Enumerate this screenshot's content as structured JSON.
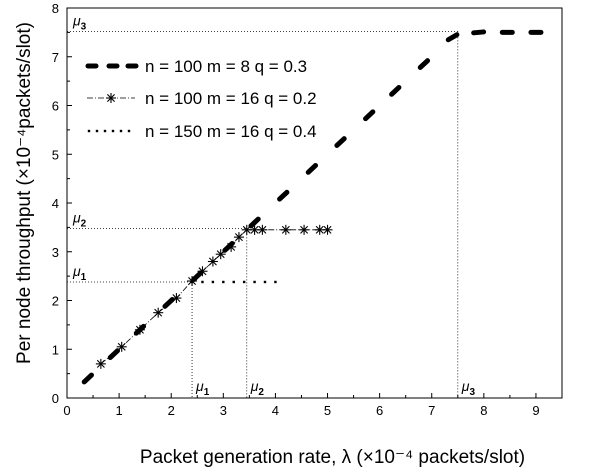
{
  "chart_data": {
    "type": "line",
    "xlabel": "Packet generation rate, λ (×10⁻⁴ packets/slot)",
    "ylabel": "Per node throughput (×10⁻⁴packets/slot)",
    "xlim": [
      0,
      9.5
    ],
    "ylim": [
      0,
      8
    ],
    "xticks": [
      "0",
      "1",
      "2",
      "3",
      "4",
      "5",
      "6",
      "7",
      "8",
      "9"
    ],
    "yticks": [
      "0",
      "1",
      "2",
      "3",
      "4",
      "5",
      "6",
      "7",
      "8"
    ],
    "grid": false,
    "legend_position": "top-left",
    "series": [
      {
        "name": "n = 100  m = 8  q = 0.3",
        "style": "dash",
        "points": [
          [
            0.4,
            0.4
          ],
          [
            0.9,
            0.9
          ],
          [
            1.4,
            1.4
          ],
          [
            1.95,
            1.95
          ],
          [
            2.5,
            2.5
          ],
          [
            3.1,
            3.1
          ],
          [
            3.6,
            3.6
          ],
          [
            4.15,
            4.15
          ],
          [
            4.7,
            4.7
          ],
          [
            5.25,
            5.25
          ],
          [
            5.8,
            5.8
          ],
          [
            6.3,
            6.3
          ],
          [
            6.85,
            6.85
          ],
          [
            7.4,
            7.4
          ],
          [
            7.9,
            7.5
          ],
          [
            8.45,
            7.5
          ],
          [
            9.0,
            7.5
          ]
        ]
      },
      {
        "name": "n = 100  m = 16  q = 0.2",
        "style": "star",
        "points": [
          [
            0.65,
            0.7
          ],
          [
            1.05,
            1.05
          ],
          [
            1.4,
            1.4
          ],
          [
            1.75,
            1.75
          ],
          [
            2.1,
            2.05
          ],
          [
            2.4,
            2.4
          ],
          [
            2.6,
            2.6
          ],
          [
            2.8,
            2.8
          ],
          [
            2.95,
            2.95
          ],
          [
            3.15,
            3.1
          ],
          [
            3.3,
            3.3
          ],
          [
            3.45,
            3.45
          ],
          [
            3.6,
            3.45
          ],
          [
            3.75,
            3.45
          ],
          [
            4.2,
            3.45
          ],
          [
            4.55,
            3.45
          ],
          [
            4.85,
            3.45
          ],
          [
            5.0,
            3.45
          ]
        ]
      },
      {
        "name": "n = 150  m = 16  q = 0.4",
        "style": "dot",
        "points": [
          [
            2.4,
            2.38
          ],
          [
            2.6,
            2.38
          ],
          [
            2.8,
            2.38
          ],
          [
            3.0,
            2.38
          ],
          [
            3.2,
            2.38
          ],
          [
            3.4,
            2.38
          ],
          [
            3.6,
            2.38
          ],
          [
            3.8,
            2.38
          ],
          [
            4.0,
            2.38
          ]
        ]
      }
    ],
    "reference_lines": [
      {
        "label": "μ",
        "sub": "1",
        "x": 2.4,
        "y": 2.38
      },
      {
        "label": "μ",
        "sub": "2",
        "x": 3.45,
        "y": 3.48
      },
      {
        "label": "μ",
        "sub": "3",
        "x": 7.5,
        "y": 7.52
      }
    ]
  }
}
